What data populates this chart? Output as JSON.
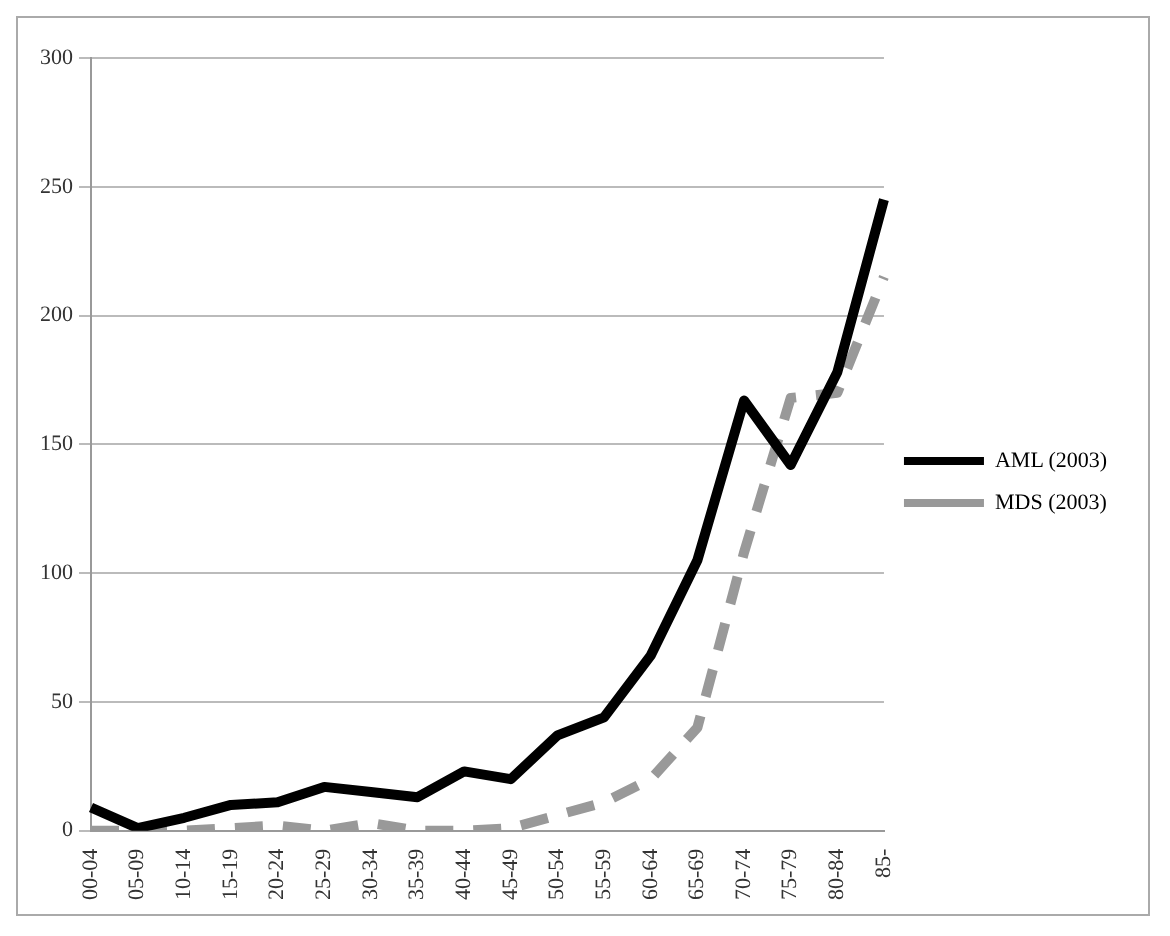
{
  "chart_data": {
    "type": "line",
    "categories": [
      "00-04",
      "05-09",
      "10-14",
      "15-19",
      "20-24",
      "25-29",
      "30-34",
      "35-39",
      "40-44",
      "45-49",
      "50-54",
      "55-59",
      "60-64",
      "65-69",
      "70-74",
      "75-79",
      "80-84",
      "85-"
    ],
    "series": [
      {
        "name": "AML (2003)",
        "color": "#000000",
        "line_style": "solid",
        "values": [
          9,
          1,
          5,
          10,
          11,
          17,
          15,
          13,
          23,
          20,
          37,
          44,
          68,
          105,
          167,
          142,
          178,
          245
        ]
      },
      {
        "name": "MDS (2003)",
        "color": "#999999",
        "line_style": "dashed",
        "values": [
          0,
          0,
          0,
          1,
          2,
          0,
          3,
          0,
          0,
          1,
          6,
          11,
          20,
          40,
          108,
          168,
          170,
          215
        ]
      }
    ],
    "ylim": [
      0,
      300
    ],
    "yticks": [
      0,
      50,
      100,
      150,
      200,
      250,
      300
    ],
    "grid": "y",
    "legend": "right",
    "marker": "none"
  }
}
